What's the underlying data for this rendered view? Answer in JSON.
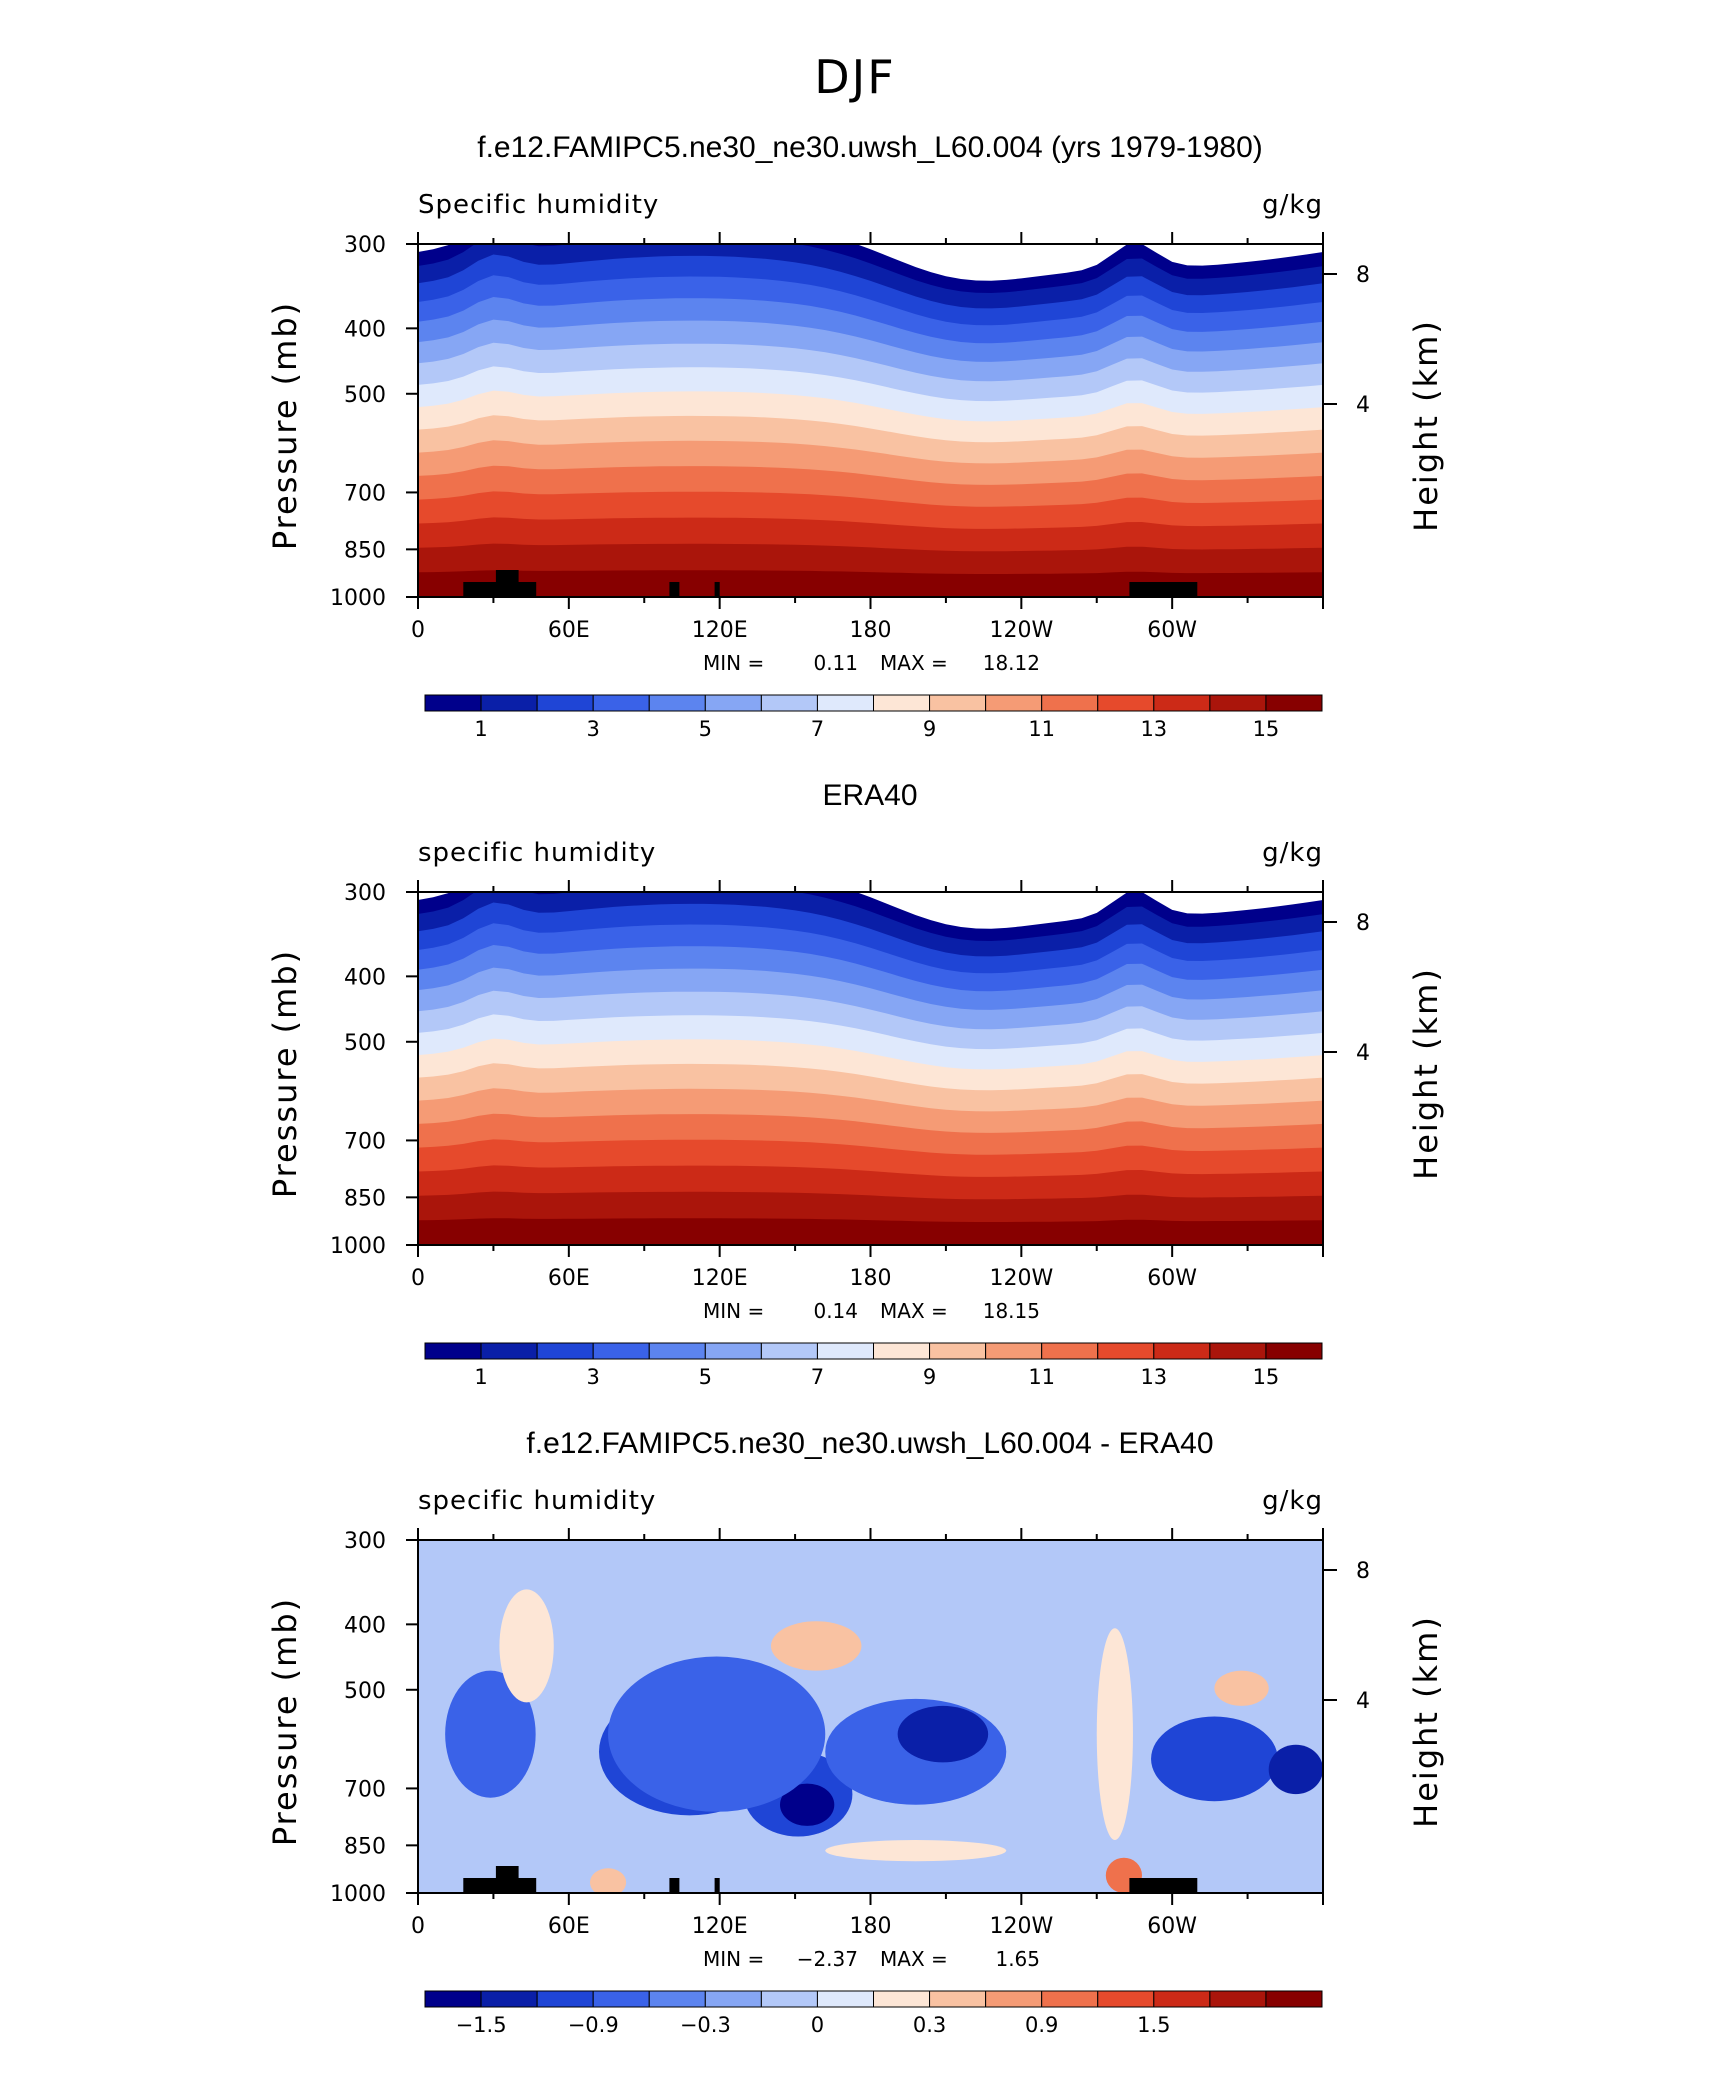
{
  "figure": {
    "title": "DJF"
  },
  "chart_data": [
    {
      "type": "heatmap",
      "title": "f.e12.FAMIPC5.ne30_ne30.uwsh_L60.004 (yrs 1979-1980)",
      "left_label": "Specific humidity",
      "right_label": "g/kg",
      "ylabel": "Pressure (mb)",
      "y2label": "Height (km)",
      "x_ticks": [
        "0",
        "60E",
        "120E",
        "180",
        "120W",
        "60W"
      ],
      "y_ticks": [
        "300",
        "400",
        "500",
        "700",
        "850",
        "1000"
      ],
      "y2_ticks": [
        "8",
        "4"
      ],
      "ylim": [
        1000,
        300
      ],
      "min_label": "MIN =",
      "min_value": "0.11",
      "max_label": "MAX =",
      "max_value": "18.12",
      "colorbar_ticks": [
        "1",
        "3",
        "5",
        "7",
        "9",
        "11",
        "13",
        "15"
      ]
    },
    {
      "type": "heatmap",
      "title": "ERA40",
      "left_label": "specific humidity",
      "right_label": "g/kg",
      "ylabel": "Pressure (mb)",
      "y2label": "Height (km)",
      "x_ticks": [
        "0",
        "60E",
        "120E",
        "180",
        "120W",
        "60W"
      ],
      "y_ticks": [
        "300",
        "400",
        "500",
        "700",
        "850",
        "1000"
      ],
      "y2_ticks": [
        "8",
        "4"
      ],
      "ylim": [
        1000,
        300
      ],
      "min_label": "MIN =",
      "min_value": "0.14",
      "max_label": "MAX =",
      "max_value": "18.15",
      "colorbar_ticks": [
        "1",
        "3",
        "5",
        "7",
        "9",
        "11",
        "13",
        "15"
      ]
    },
    {
      "type": "heatmap",
      "title": "f.e12.FAMIPC5.ne30_ne30.uwsh_L60.004 - ERA40",
      "left_label": "specific humidity",
      "right_label": "g/kg",
      "ylabel": "Pressure (mb)",
      "y2label": "Height (km)",
      "x_ticks": [
        "0",
        "60E",
        "120E",
        "180",
        "120W",
        "60W"
      ],
      "y_ticks": [
        "300",
        "400",
        "500",
        "700",
        "850",
        "1000"
      ],
      "y2_ticks": [
        "8",
        "4"
      ],
      "ylim": [
        1000,
        300
      ],
      "min_label": "MIN =",
      "min_value": "−2.37",
      "max_label": "MAX =",
      "max_value": "1.65",
      "colorbar_ticks": [
        "−1.5",
        "−0.9",
        "−0.3",
        "0",
        "0.3",
        "0.9",
        "1.5"
      ]
    }
  ],
  "colors": {
    "scale": [
      "#00008b",
      "#0a1fa8",
      "#1f45d6",
      "#3a62e8",
      "#5c84ef",
      "#86a6f4",
      "#b3c8f8",
      "#dfe9fc",
      "#fde6d6",
      "#f9c2a2",
      "#f59b75",
      "#ef714c",
      "#e64a2c",
      "#cc2a17",
      "#aa150b",
      "#870000"
    ],
    "terrain": "#000000"
  }
}
